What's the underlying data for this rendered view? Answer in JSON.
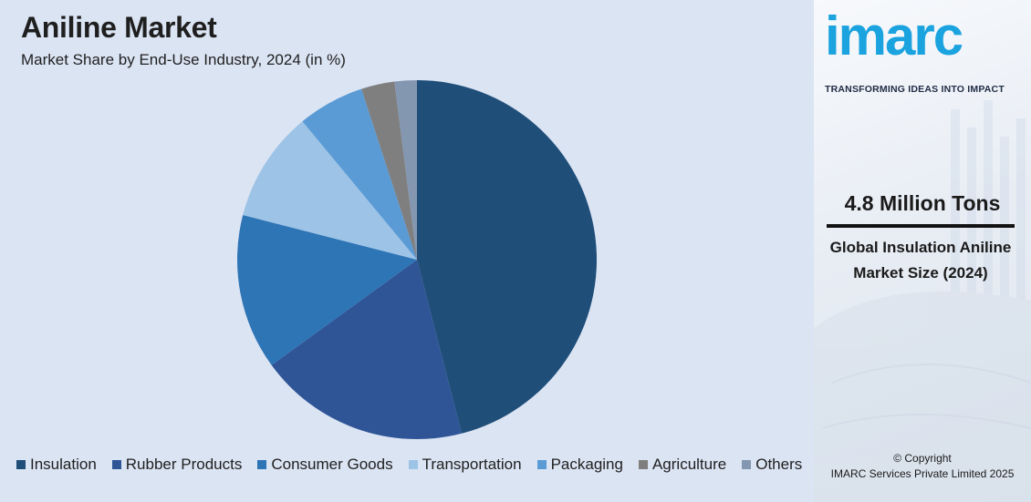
{
  "title": "Aniline Market",
  "subtitle": "Market Share by End-Use Industry, 2024 (in %)",
  "chart_data": {
    "type": "pie",
    "categories": [
      "Insulation",
      "Rubber Products",
      "Consumer Goods",
      "Transportation",
      "Packaging",
      "Agriculture",
      "Others"
    ],
    "values": [
      46,
      19,
      14,
      10,
      6,
      3,
      2
    ],
    "colors": [
      "#1f4e79",
      "#2f5597",
      "#2e75b6",
      "#9dc3e6",
      "#5b9bd5",
      "#7f7f7f",
      "#8497b0"
    ],
    "legend_position": "bottom"
  },
  "side": {
    "logo": "imarc",
    "tagline": "TRANSFORMING IDEAS INTO IMPACT",
    "stat_value": "4.8 Million Tons",
    "stat_label": "Global Insulation Aniline Market Size (2024)",
    "copyright_line1": "© Copyright",
    "copyright_line2": "IMARC Services Private Limited 2025"
  }
}
